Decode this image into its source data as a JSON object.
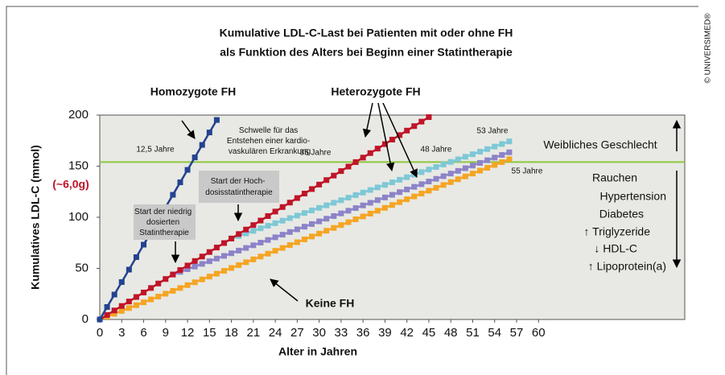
{
  "chart_data": {
    "type": "line",
    "title": [
      "Kumulative LDL-C-Last bei Patienten mit oder ohne FH",
      "als Funktion des Alters bei Beginn einer Statintherapie"
    ],
    "x_label": "Alter in Jahren",
    "y_label": "Kumulatives LDL-C (mmol)",
    "y_note": "(~6,0g)",
    "copyright": "© UNIVERSIMED®",
    "xlim": [
      0,
      80
    ],
    "xticks": [
      0,
      3,
      6,
      9,
      12,
      15,
      18,
      21,
      24,
      27,
      30,
      33,
      36,
      39,
      42,
      45,
      48,
      51,
      54,
      57,
      60
    ],
    "ylim": [
      0,
      200
    ],
    "yticks": [
      0,
      50,
      100,
      150,
      200
    ],
    "threshold": {
      "value": 154,
      "color": "#8dc63f"
    },
    "series": [
      {
        "name": "Homozygote FH",
        "color": "#24438f",
        "x": [
          0,
          1,
          2,
          3,
          4,
          5,
          6,
          7,
          8,
          9,
          10,
          11,
          12,
          13,
          14,
          15,
          16
        ],
        "values": [
          0,
          12.2,
          24.4,
          36.6,
          48.8,
          61,
          73.2,
          85.4,
          97.6,
          109.8,
          122,
          134.2,
          146.4,
          158.6,
          170.8,
          183,
          195.2
        ]
      },
      {
        "name": "Heterozygote FH",
        "color": "#c01428",
        "x": [
          0,
          1,
          2,
          3,
          4,
          5,
          6,
          7,
          8,
          9,
          10,
          11,
          12,
          13,
          14,
          15,
          16,
          17,
          18,
          19,
          20,
          21,
          22,
          23,
          24,
          25,
          26,
          27,
          28,
          29,
          30,
          31,
          32,
          33,
          34,
          35,
          36,
          37,
          38,
          39,
          40,
          41,
          42,
          43,
          44,
          45
        ],
        "values": [
          0,
          4.4,
          8.8,
          13.2,
          17.6,
          22,
          26.4,
          30.8,
          35.2,
          39.6,
          44,
          48.4,
          52.8,
          57.2,
          61.6,
          66,
          70.4,
          74.8,
          79.2,
          83.6,
          88,
          92.4,
          96.8,
          101.2,
          105.6,
          110,
          114.4,
          118.8,
          123.2,
          127.6,
          132,
          136.4,
          140.8,
          145.2,
          149.6,
          154,
          158.4,
          162.8,
          167.2,
          171.6,
          176,
          180.4,
          184.8,
          189.2,
          193.6,
          198
        ]
      },
      {
        "color": "#8c83c8",
        "x": [
          10,
          11,
          12,
          13,
          14,
          15,
          16,
          17,
          18,
          19,
          20,
          21,
          22,
          23,
          24,
          25,
          26,
          27,
          28,
          29,
          30,
          31,
          32,
          33,
          34,
          35,
          36,
          37,
          38,
          39,
          40,
          41,
          42,
          43,
          44,
          45,
          46,
          47,
          48,
          49,
          50,
          51,
          52,
          53,
          54,
          55,
          56
        ],
        "values": [
          44,
          46.6,
          49.2,
          51.8,
          54.4,
          57,
          59.6,
          62.2,
          64.8,
          67.4,
          70,
          72.6,
          75.2,
          77.8,
          80.4,
          83,
          85.6,
          88.2,
          90.8,
          93.4,
          96,
          98.6,
          101.2,
          103.8,
          106.4,
          109,
          111.6,
          114.2,
          116.8,
          119.4,
          122,
          124.6,
          127.2,
          129.8,
          132.4,
          135,
          137.6,
          140.2,
          142.8,
          145.4,
          148,
          150.6,
          153.2,
          155.8,
          158.4,
          161,
          163.6
        ]
      },
      {
        "color": "#7ec8d6",
        "x": [
          18,
          19,
          20,
          21,
          22,
          23,
          24,
          25,
          26,
          27,
          28,
          29,
          30,
          31,
          32,
          33,
          34,
          35,
          36,
          37,
          38,
          39,
          40,
          41,
          42,
          43,
          44,
          45,
          46,
          47,
          48,
          49,
          50,
          51,
          52,
          53,
          54,
          55,
          56
        ],
        "values": [
          79.2,
          81.7,
          84.2,
          86.7,
          89.2,
          91.7,
          94.2,
          96.7,
          99.2,
          101.7,
          104.2,
          106.7,
          109.2,
          111.7,
          114.2,
          116.7,
          119.2,
          121.7,
          124.2,
          126.7,
          129.2,
          131.7,
          134.2,
          136.7,
          139.2,
          141.7,
          144.2,
          146.7,
          149.2,
          151.7,
          154.2,
          156.7,
          159.2,
          161.7,
          164.2,
          166.7,
          169.2,
          171.7,
          174.2
        ]
      },
      {
        "name": "Keine FH",
        "color": "#f5a524",
        "x": [
          0,
          1,
          2,
          3,
          4,
          5,
          6,
          7,
          8,
          9,
          10,
          11,
          12,
          13,
          14,
          15,
          16,
          17,
          18,
          19,
          20,
          21,
          22,
          23,
          24,
          25,
          26,
          27,
          28,
          29,
          30,
          31,
          32,
          33,
          34,
          35,
          36,
          37,
          38,
          39,
          40,
          41,
          42,
          43,
          44,
          45,
          46,
          47,
          48,
          49,
          50,
          51,
          52,
          53,
          54,
          55,
          56
        ],
        "values": [
          0,
          2.8,
          5.6,
          8.4,
          11.2,
          14,
          16.8,
          19.6,
          22.4,
          25.2,
          28,
          30.8,
          33.6,
          36.4,
          39.2,
          42,
          44.8,
          47.6,
          50.4,
          53.2,
          56,
          58.8,
          61.6,
          64.4,
          67.2,
          70,
          72.8,
          75.6,
          78.4,
          81.2,
          84,
          86.8,
          89.6,
          92.4,
          95.2,
          98,
          100.8,
          103.6,
          106.4,
          109.2,
          112,
          114.8,
          117.6,
          120.4,
          123.2,
          126,
          128.8,
          131.6,
          134.4,
          137.2,
          140,
          142.8,
          145.6,
          148.4,
          151.2,
          154,
          156.8
        ]
      }
    ],
    "annotations": {
      "threshold_label": [
        "Schwelle für das",
        "Entstehen einer kardio-",
        "vaskulären Erkrankung"
      ],
      "ages": [
        "12,5 Jahre",
        "35 Jahre",
        "48 Jahre",
        "53 Jahre",
        "55 Jahre"
      ],
      "high_dose": [
        "Start der Hoch-",
        "dosisstatintherapie"
      ],
      "low_dose": [
        "Start der niedrig",
        "dosierten",
        "Statintherapie"
      ],
      "female": "Weibliches Geschlecht",
      "risk_factors": [
        "Rauchen",
        "Hypertension",
        "Diabetes",
        "↑ Triglyzeride",
        "↓ HDL-C",
        "↑ Lipoprotein(a)"
      ]
    }
  }
}
